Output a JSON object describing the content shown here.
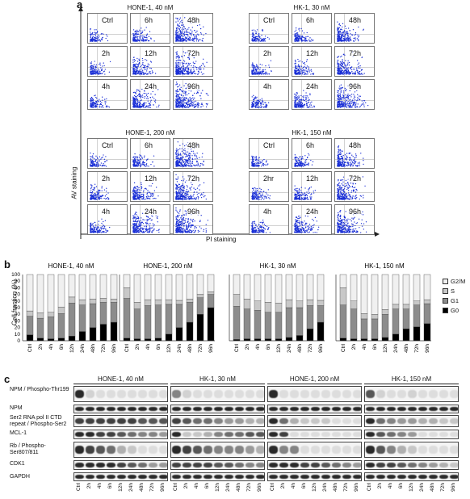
{
  "panel_a": {
    "letter": "a",
    "y_axis_label": "AV staining",
    "x_axis_label": "PI staining",
    "blocks": [
      {
        "title": "HONE-1, 40 nM",
        "labels": [
          "Ctrl",
          "6h",
          "48h",
          "2h",
          "12h",
          "72h",
          "4h",
          "24h",
          "96h"
        ],
        "density": [
          0.25,
          0.35,
          0.9,
          0.3,
          0.5,
          0.95,
          0.3,
          0.7,
          1.0
        ]
      },
      {
        "title": "HK-1, 30 nM",
        "labels": [
          "Ctrl",
          "6h",
          "48h",
          "2h",
          "12h",
          "72h",
          "4h",
          "24h",
          "96h"
        ],
        "density": [
          0.2,
          0.3,
          0.65,
          0.3,
          0.35,
          0.75,
          0.25,
          0.5,
          0.85
        ]
      },
      {
        "title": "HONE-1, 200 nM",
        "labels": [
          "Ctrl",
          "6h",
          "48h",
          "2h",
          "12h",
          "72h",
          "4h",
          "24h",
          "96h"
        ],
        "density": [
          0.25,
          0.35,
          0.85,
          0.35,
          0.55,
          0.9,
          0.35,
          0.8,
          0.95
        ]
      },
      {
        "title": "HK-1, 150 nM",
        "labels": [
          "Ctrl",
          "6h",
          "48h",
          "2hr",
          "12h",
          "72h",
          "4h",
          "24h",
          "96h"
        ],
        "density": [
          0.2,
          0.3,
          0.7,
          0.25,
          0.35,
          0.75,
          0.3,
          0.55,
          0.8
        ]
      }
    ]
  },
  "panel_b": {
    "letter": "b",
    "ylabel": "Cell fraction (%)",
    "yticks": [
      "0",
      "10",
      "20",
      "30",
      "40",
      "50",
      "60",
      "70",
      "80",
      "90",
      "100"
    ],
    "legend": [
      {
        "name": "G2/M",
        "color": "#f0f0f0"
      },
      {
        "name": "S",
        "color": "#c8c8c8"
      },
      {
        "name": "G1",
        "color": "#8c8c8c"
      },
      {
        "name": "G0",
        "color": "#000000"
      }
    ]
  },
  "chart_data": [
    {
      "type": "bar",
      "title": "HONE-1, 40 nM",
      "categories": [
        "Ctrl",
        "2h",
        "4h",
        "6h",
        "12h",
        "24h",
        "48h",
        "72h",
        "96h"
      ],
      "ylim": [
        0,
        100
      ],
      "series": [
        {
          "name": "G0",
          "values": [
            9,
            4,
            3,
            4,
            7,
            14,
            20,
            25,
            28
          ]
        },
        {
          "name": "G1",
          "values": [
            28,
            30,
            33,
            37,
            50,
            40,
            36,
            33,
            30
          ]
        },
        {
          "name": "S",
          "values": [
            8,
            8,
            7,
            10,
            9,
            8,
            7,
            6,
            5
          ]
        },
        {
          "name": "G2/M",
          "values": [
            55,
            58,
            57,
            49,
            34,
            38,
            37,
            36,
            37
          ]
        }
      ]
    },
    {
      "type": "bar",
      "title": "HONE-1, 200 nM",
      "categories": [
        "Ctrl",
        "2h",
        "4h",
        "6h",
        "12h",
        "24h",
        "48h",
        "72h",
        "96h"
      ],
      "ylim": [
        0,
        100
      ],
      "series": [
        {
          "name": "G0",
          "values": [
            4,
            3,
            3,
            4,
            10,
            20,
            28,
            40,
            50
          ]
        },
        {
          "name": "G1",
          "values": [
            60,
            45,
            50,
            50,
            45,
            35,
            30,
            25,
            20
          ]
        },
        {
          "name": "S",
          "values": [
            16,
            10,
            9,
            8,
            7,
            6,
            5,
            5,
            4
          ]
        },
        {
          "name": "G2/M",
          "values": [
            20,
            42,
            38,
            38,
            38,
            39,
            37,
            30,
            26
          ]
        }
      ]
    },
    {
      "type": "bar",
      "title": "HK-1, 30 nM",
      "categories": [
        "Ctrl",
        "2h",
        "4h",
        "6h",
        "12h",
        "24h",
        "48h",
        "72h",
        "96h"
      ],
      "ylim": [
        0,
        100
      ],
      "series": [
        {
          "name": "G0",
          "values": [
            2,
            3,
            3,
            3,
            3,
            5,
            8,
            18,
            28
          ]
        },
        {
          "name": "G1",
          "values": [
            50,
            45,
            43,
            40,
            40,
            45,
            42,
            35,
            25
          ]
        },
        {
          "name": "S",
          "values": [
            18,
            15,
            14,
            15,
            14,
            12,
            10,
            9,
            8
          ]
        },
        {
          "name": "G2/M",
          "values": [
            30,
            37,
            40,
            42,
            43,
            38,
            40,
            38,
            39
          ]
        }
      ]
    },
    {
      "type": "bar",
      "title": "HK-1, 150 nM",
      "categories": [
        "Ctrl",
        "2h",
        "4h",
        "6h",
        "12h",
        "24h",
        "48h",
        "72h",
        "96h"
      ],
      "ylim": [
        0,
        100
      ],
      "series": [
        {
          "name": "G0",
          "values": [
            4,
            3,
            3,
            3,
            5,
            10,
            18,
            21,
            26
          ]
        },
        {
          "name": "G1",
          "values": [
            50,
            45,
            30,
            30,
            35,
            38,
            30,
            33,
            30
          ]
        },
        {
          "name": "S",
          "values": [
            26,
            12,
            8,
            7,
            7,
            7,
            7,
            6,
            6
          ]
        },
        {
          "name": "G2/M",
          "values": [
            20,
            40,
            59,
            60,
            53,
            45,
            45,
            40,
            38
          ]
        }
      ]
    }
  ],
  "panel_c": {
    "letter": "c",
    "groups": [
      "HONE-1, 40 nM",
      "HK-1, 30 nM",
      "HONE-1, 200 nM",
      "HK-1, 150 nM"
    ],
    "rows": [
      "NPM / Phospho-Thr199",
      "NPM",
      "Ser2 RNA pol II CTD repeat / Phospho-Ser2",
      "MCL-1",
      "Rb / Phospho-Ser807/811",
      "CDK1",
      "GAPDH"
    ],
    "lanes": [
      "Ctrl",
      "2h",
      "4h",
      "6h",
      "12h",
      "24h",
      "48h",
      "72h",
      "96h"
    ]
  }
}
